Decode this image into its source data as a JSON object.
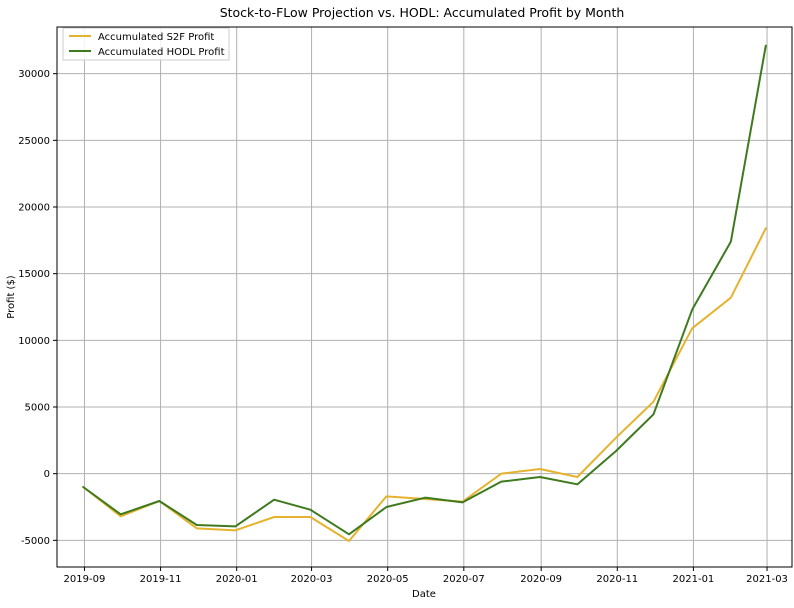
{
  "chart_data": {
    "type": "line",
    "title": "Stock-to-FLow Projection vs. HODL: Accumulated Profit by Month",
    "xlabel": "Date",
    "ylabel": "Profit ($)",
    "x": [
      "2019-08-31",
      "2019-09-30",
      "2019-10-31",
      "2019-11-30",
      "2019-12-31",
      "2020-01-31",
      "2020-02-29",
      "2020-03-31",
      "2020-04-30",
      "2020-05-31",
      "2020-06-30",
      "2020-07-31",
      "2020-08-31",
      "2020-09-30",
      "2020-10-31",
      "2020-11-30",
      "2020-12-31",
      "2021-01-31",
      "2021-02-28"
    ],
    "series": [
      {
        "name": "Accumulated S2F Profit",
        "color": "#e6b32e",
        "values": [
          -1000,
          -3200,
          -2050,
          -4100,
          -4250,
          -3250,
          -3250,
          -5050,
          -1700,
          -1900,
          -2100,
          0,
          350,
          -250,
          2700,
          5400,
          10900,
          13200,
          18400
        ]
      },
      {
        "name": "Accumulated HODL Profit",
        "color": "#3f7a1f",
        "values": [
          -1000,
          -3050,
          -2050,
          -3850,
          -3950,
          -1950,
          -2700,
          -4550,
          -2500,
          -1800,
          -2150,
          -600,
          -250,
          -800,
          1700,
          4450,
          12300,
          17400,
          32100
        ]
      }
    ],
    "xlim": [
      "2019-08-10",
      "2021-03-21"
    ],
    "ylim": [
      -7000,
      33500
    ],
    "xticks": [
      "2019-09",
      "2019-11",
      "2020-01",
      "2020-03",
      "2020-05",
      "2020-07",
      "2020-09",
      "2020-11",
      "2021-01",
      "2021-03"
    ],
    "xtick_dates": [
      "2019-09-01",
      "2019-11-01",
      "2020-01-01",
      "2020-03-01",
      "2020-05-01",
      "2020-07-01",
      "2020-09-01",
      "2020-11-01",
      "2021-01-01",
      "2021-03-01"
    ],
    "yticks": [
      -5000,
      0,
      5000,
      10000,
      15000,
      20000,
      25000,
      30000
    ],
    "grid": true,
    "legend_position": "top-left"
  }
}
